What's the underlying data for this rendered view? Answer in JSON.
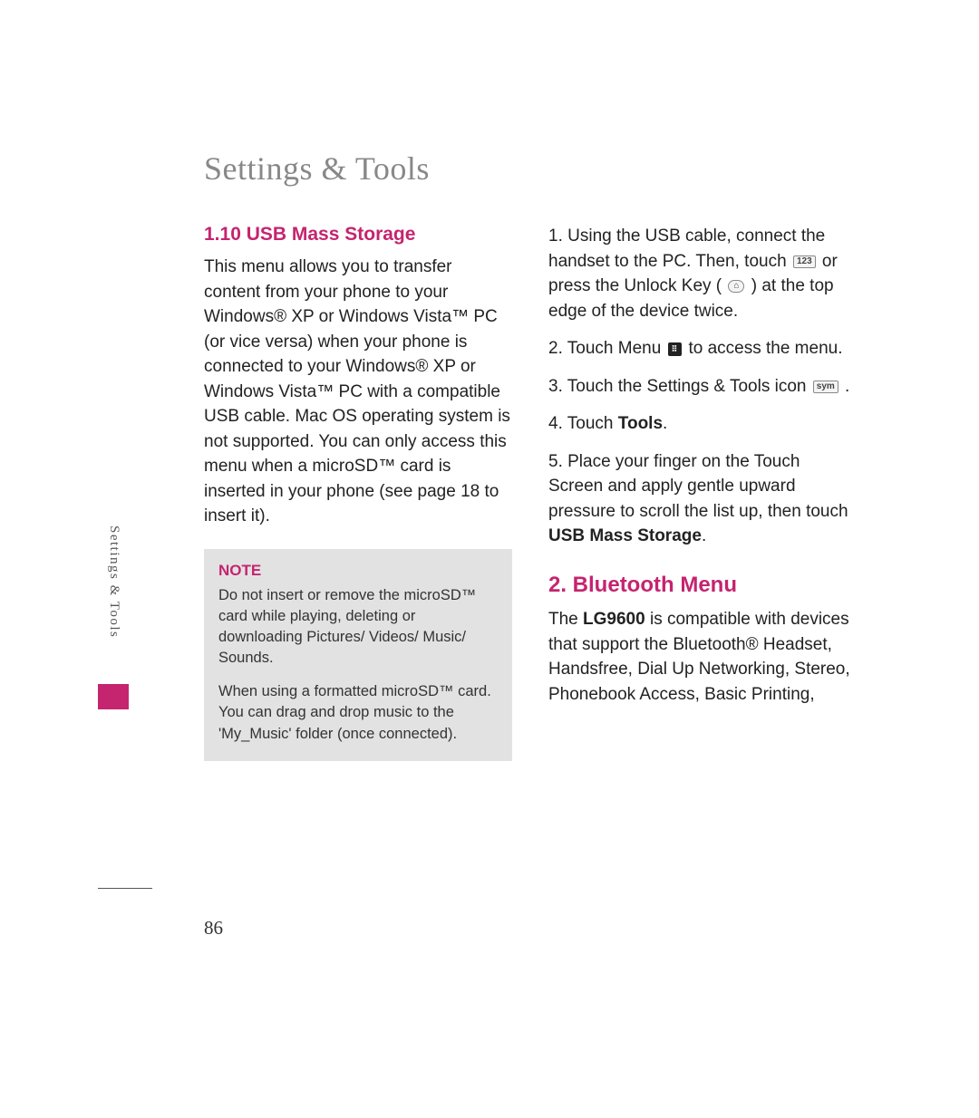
{
  "colors": {
    "accent": "#c5246f",
    "title_gray": "#888888",
    "body_text": "#222222",
    "note_bg": "#e2e2e2",
    "note_text": "#333333",
    "side_text": "#555555"
  },
  "typography": {
    "title_fontsize": 36,
    "section_heading_fontsize": 21,
    "major_heading_fontsize": 24,
    "body_fontsize": 19,
    "note_title_fontsize": 17,
    "note_body_fontsize": 16.5,
    "side_tab_fontsize": 15,
    "page_number_fontsize": 21
  },
  "page": {
    "title": "Settings & Tools",
    "number": "86",
    "side_tab": "Settings & Tools"
  },
  "left": {
    "heading": "1.10 USB Mass Storage",
    "body": "This menu allows you to transfer content from your phone to your Windows® XP or Windows Vista™ PC (or vice versa) when your phone is connected to your Windows® XP or Windows Vista™ PC with a compatible USB cable. Mac OS operating system is not supported.  You can only access this menu when a microSD™ card is inserted in your phone (see page 18 to insert it).",
    "note": {
      "title": "NOTE",
      "p1": "Do not insert or remove the microSD™ card while playing, deleting or downloading Pictures/ Videos/ Music/ Sounds.",
      "p2": "When using a formatted microSD™ card. You can drag and drop music to the 'My_Music' folder (once connected)."
    }
  },
  "right": {
    "steps": {
      "s1_a": "1. Using the USB cable, connect the handset to the PC. Then, touch ",
      "s1_icon1": "123",
      "s1_b": " or press the Unlock Key ( ",
      "s1_icon2": "⌂",
      "s1_c": " ) at the top edge of the device twice.",
      "s2_a": "2. Touch Menu ",
      "s2_icon": "⠿",
      "s2_b": " to access the menu.",
      "s3_a": "3. Touch the Settings & Tools icon ",
      "s3_icon": "sym",
      "s3_b": " .",
      "s4": "4. Touch ",
      "s4_bold": "Tools",
      "s4_end": ".",
      "s5_a": "5. Place your finger on the Touch Screen and apply gentle upward pressure to scroll the list up, then touch ",
      "s5_bold": "USB Mass Storage",
      "s5_end": "."
    },
    "section2": {
      "heading": "2. Bluetooth Menu",
      "body_a": "The ",
      "body_bold": "LG9600",
      "body_b": " is compatible with devices that support the Bluetooth® Headset, Handsfree, Dial Up Networking, Stereo, Phonebook Access, Basic Printing,"
    }
  }
}
